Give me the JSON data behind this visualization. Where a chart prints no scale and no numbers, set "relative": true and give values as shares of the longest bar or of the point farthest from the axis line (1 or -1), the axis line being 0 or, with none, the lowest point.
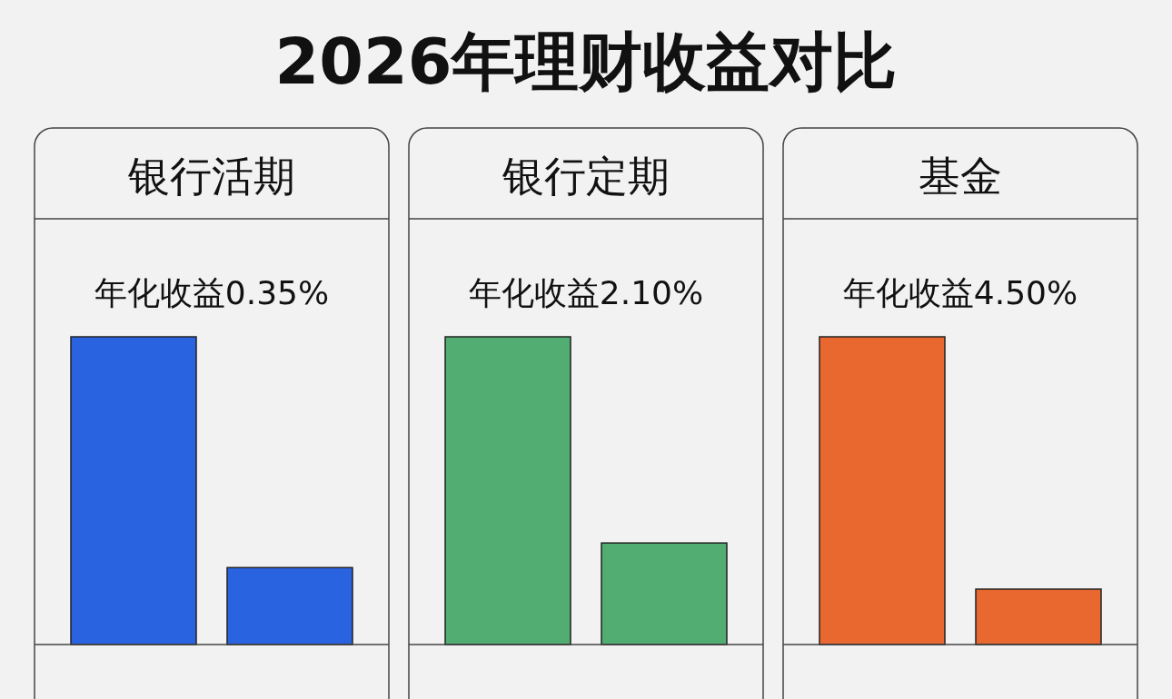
{
  "chart_data": [
    {
      "type": "bar",
      "title": "银行活期",
      "subtitle": "年化收益0.35%",
      "annotations": [
        "2026年理财收益对比"
      ],
      "categories": [
        null,
        null
      ],
      "relative": true,
      "values": [
        1,
        0.25
      ],
      "color": "#2a63e0"
    },
    {
      "type": "bar",
      "title": "银行定期",
      "subtitle": "年化收益2.10%",
      "categories": [
        null,
        null
      ],
      "relative": true,
      "values": [
        1,
        0.33
      ],
      "color": "#52ad72"
    },
    {
      "type": "bar",
      "title": "基金",
      "subtitle": "年化收益4.50%",
      "categories": [
        null,
        null
      ],
      "relative": true,
      "values": [
        1,
        0.18
      ],
      "color": "#e8682f"
    }
  ]
}
